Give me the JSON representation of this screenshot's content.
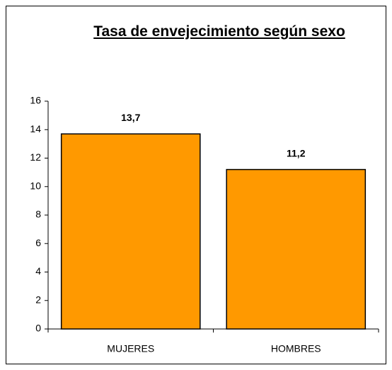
{
  "chart_data": {
    "type": "bar",
    "title": "Tasa de envejecimiento según sexo",
    "categories": [
      "MUJERES",
      "HOMBRES"
    ],
    "values": [
      13.7,
      11.2
    ],
    "value_labels": [
      "13,7",
      "11,2"
    ],
    "color": "#ff9900",
    "ylim": [
      0,
      16
    ],
    "yticks": [
      0,
      2,
      4,
      6,
      8,
      10,
      12,
      14,
      16
    ]
  }
}
